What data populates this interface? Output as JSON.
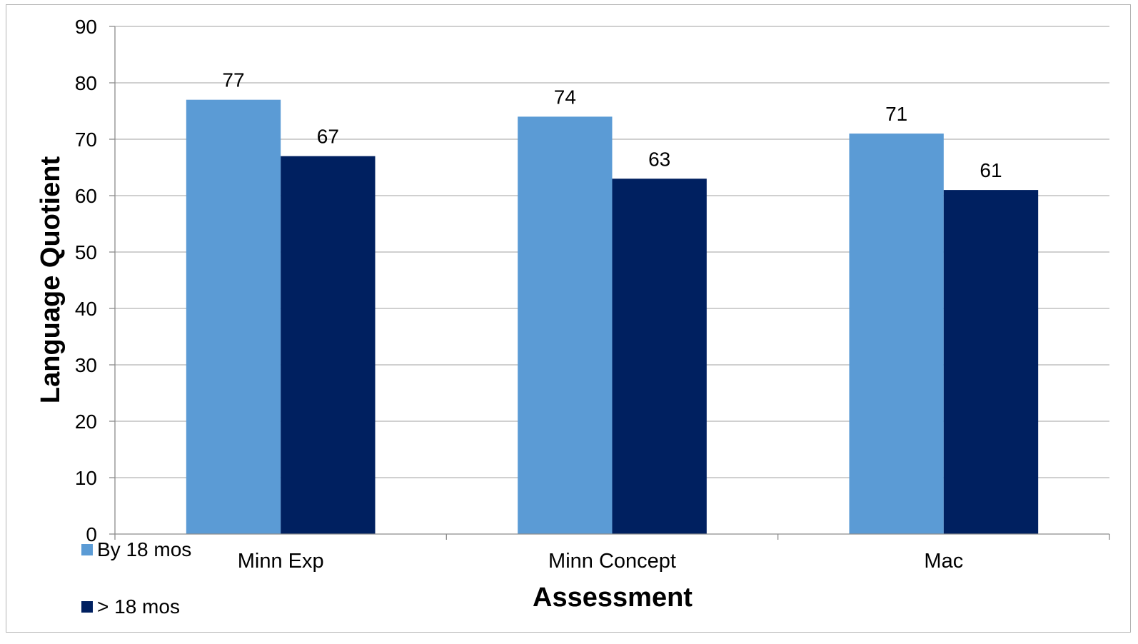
{
  "chart_data": {
    "type": "bar",
    "categories": [
      "Minn Exp",
      "Minn Concept",
      "Mac"
    ],
    "series": [
      {
        "name": "By 18 mos",
        "values": [
          77,
          74,
          71
        ],
        "color": "#5b9bd5"
      },
      {
        "name": "> 18 mos",
        "values": [
          67,
          63,
          61
        ],
        "color": "#002060"
      }
    ],
    "xlabel": "Assessment",
    "ylabel": "Language Quotient",
    "ylim": [
      0,
      90
    ],
    "yticks": [
      "0",
      "10",
      "20",
      "30",
      "40",
      "50",
      "60",
      "70",
      "80",
      "90"
    ],
    "grid": true,
    "legend_position": "bottom-left",
    "data_labels": true
  }
}
